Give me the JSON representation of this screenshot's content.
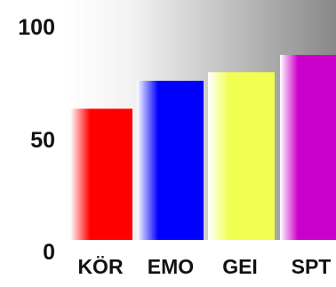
{
  "chart_data": {
    "type": "bar",
    "title": "",
    "xlabel": "",
    "ylabel": "",
    "ylim": [
      0,
      100
    ],
    "yticks": [
      0,
      50,
      100
    ],
    "grid": false,
    "categories": [
      "KÖR",
      "EMO",
      "GEI",
      "SPT"
    ],
    "values": [
      61,
      74,
      78,
      86
    ],
    "colors": [
      "#ff0000",
      "#0000ff",
      "#f0ff50",
      "#cc00cc"
    ]
  }
}
